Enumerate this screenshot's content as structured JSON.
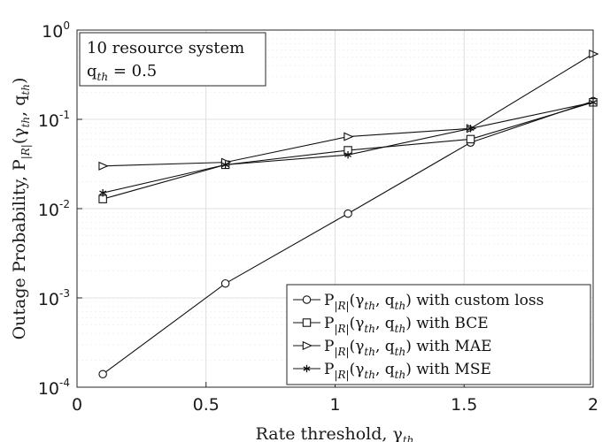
{
  "chart_data": {
    "type": "line",
    "yscale": "log",
    "xlabel": "Rate threshold, γ_th",
    "ylabel": "Outage Probability, P_|R|(γ_th, q_th)",
    "xlim": [
      0,
      2
    ],
    "ylim": [
      0.0001,
      1
    ],
    "x_ticks": [
      "0",
      "0.5",
      "1",
      "1.5",
      "2"
    ],
    "y_ticks": [
      {
        "base": "10",
        "exp": "-4",
        "value": 0.0001
      },
      {
        "base": "10",
        "exp": "-3",
        "value": 0.001
      },
      {
        "base": "10",
        "exp": "-2",
        "value": 0.01
      },
      {
        "base": "10",
        "exp": "-1",
        "value": 0.1
      },
      {
        "base": "10",
        "exp": "0",
        "value": 1
      }
    ],
    "grid": true,
    "annotation": {
      "line1": "10 resource system",
      "line2": "q_th = 0.5"
    },
    "legend_position": "bottom-right",
    "x": [
      0.1,
      0.575,
      1.05,
      1.525,
      2.0
    ],
    "series": [
      {
        "name": "P_|R|(γ_th, q_th) with custom loss",
        "marker": "circle",
        "values": [
          0.00014,
          0.00145,
          0.0088,
          0.055,
          0.16
        ]
      },
      {
        "name": "P_|R|(γ_th, q_th) with BCE",
        "marker": "square",
        "values": [
          0.0128,
          0.031,
          0.045,
          0.06,
          0.155
        ]
      },
      {
        "name": "P_|R|(γ_th, q_th) with MAE",
        "marker": "triangle-right",
        "values": [
          0.03,
          0.033,
          0.064,
          0.079,
          0.54
        ]
      },
      {
        "name": "P_|R|(γ_th, q_th) with MSE",
        "marker": "asterisk",
        "values": [
          0.015,
          0.031,
          0.04,
          0.079,
          0.155
        ]
      }
    ]
  }
}
